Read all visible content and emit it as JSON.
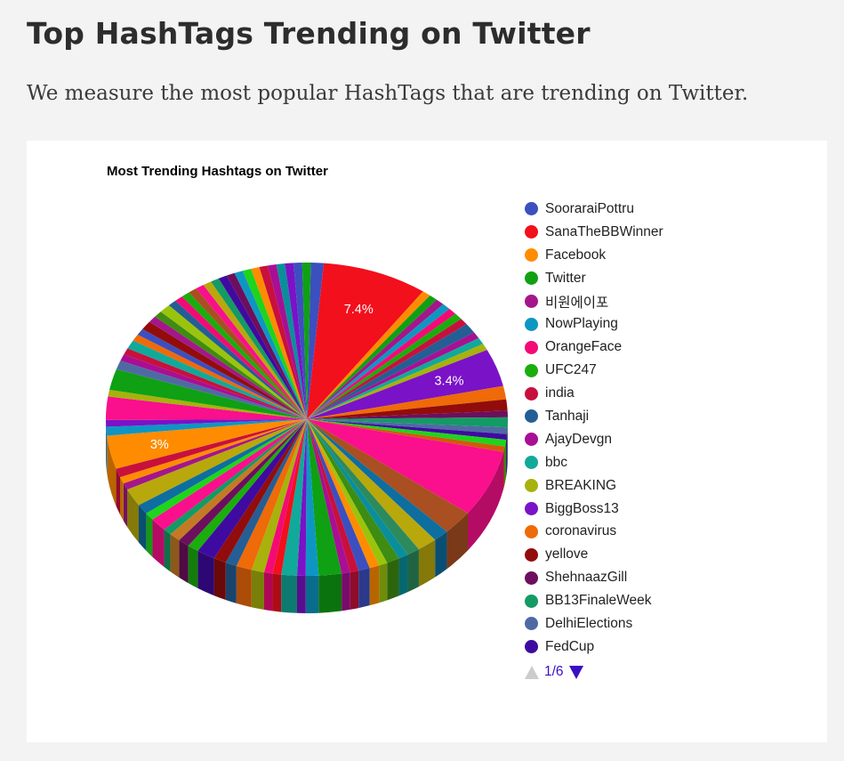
{
  "page": {
    "title": "Top HashTags Trending on Twitter",
    "subtitle": "We measure the most popular HashTags that are trending on Twitter."
  },
  "chart_data": {
    "type": "pie",
    "title": "Most Trending Hashtags on Twitter",
    "legend_position": "right",
    "legend_page": "1/6",
    "legend": [
      {
        "label": "SooraraiPottru",
        "color": "#3c4fbf"
      },
      {
        "label": "SanaTheBBWinner",
        "color": "#f1101c"
      },
      {
        "label": "Facebook",
        "color": "#ff8c00"
      },
      {
        "label": "Twitter",
        "color": "#0fa014"
      },
      {
        "label": "비원에이포",
        "color": "#a4168a"
      },
      {
        "label": "NowPlaying",
        "color": "#0e96c2"
      },
      {
        "label": "OrangeFace",
        "color": "#f30a76"
      },
      {
        "label": "UFC247",
        "color": "#1aad0d"
      },
      {
        "label": "india",
        "color": "#c8103c"
      },
      {
        "label": "Tanhaji",
        "color": "#245e94"
      },
      {
        "label": "AjayDevgn",
        "color": "#a80f94"
      },
      {
        "label": "bbc",
        "color": "#11a99a"
      },
      {
        "label": "BREAKING",
        "color": "#a7b20c"
      },
      {
        "label": "BiggBoss13",
        "color": "#7a12c7"
      },
      {
        "label": "coronavirus",
        "color": "#ef6a08"
      },
      {
        "label": "yellove",
        "color": "#920c0c"
      },
      {
        "label": "ShehnaazGill",
        "color": "#6d0f5e"
      },
      {
        "label": "BB13FinaleWeek",
        "color": "#149a64"
      },
      {
        "label": "DelhiElections",
        "color": "#4f6aa3"
      },
      {
        "label": "FedCup",
        "color": "#3f0aa0"
      }
    ],
    "slices": [
      {
        "value": 0.9,
        "color": "#3c4fbf"
      },
      {
        "value": 7.4,
        "color": "#f1101c",
        "label": "7.4%"
      },
      {
        "value": 0.6,
        "color": "#ff8c00"
      },
      {
        "value": 0.6,
        "color": "#0fa014"
      },
      {
        "value": 0.6,
        "color": "#a4168a"
      },
      {
        "value": 0.6,
        "color": "#0e96c2"
      },
      {
        "value": 0.6,
        "color": "#f30a76"
      },
      {
        "value": 0.6,
        "color": "#1aad0d"
      },
      {
        "value": 0.6,
        "color": "#c8103c"
      },
      {
        "value": 0.9,
        "color": "#245e94"
      },
      {
        "value": 0.6,
        "color": "#a80f94"
      },
      {
        "value": 0.6,
        "color": "#11a99a"
      },
      {
        "value": 0.6,
        "color": "#a7b20c"
      },
      {
        "value": 3.4,
        "color": "#7a12c7",
        "label": "3.4%"
      },
      {
        "value": 1.2,
        "color": "#ef6a08"
      },
      {
        "value": 1.0,
        "color": "#920c0c"
      },
      {
        "value": 0.6,
        "color": "#6d0f5e"
      },
      {
        "value": 0.9,
        "color": "#149a64"
      },
      {
        "value": 0.6,
        "color": "#4f6aa3"
      },
      {
        "value": 0.5,
        "color": "#3f0aa0"
      },
      {
        "value": 0.6,
        "color": "#1fd41c"
      },
      {
        "value": 0.5,
        "color": "#d05b0a"
      },
      {
        "value": 6.0,
        "color": "#fa0f8c"
      },
      {
        "value": 2.2,
        "color": "#a94f22"
      },
      {
        "value": 1.1,
        "color": "#0e6ea0"
      },
      {
        "value": 1.4,
        "color": "#b8a80c"
      },
      {
        "value": 0.9,
        "color": "#2d8a5c"
      },
      {
        "value": 0.7,
        "color": "#0a8f9a"
      },
      {
        "value": 0.9,
        "color": "#3e8c12"
      },
      {
        "value": 0.6,
        "color": "#9ac40c"
      },
      {
        "value": 0.7,
        "color": "#ff8c00"
      },
      {
        "value": 0.8,
        "color": "#3c4fbf"
      },
      {
        "value": 0.6,
        "color": "#c8103c"
      },
      {
        "value": 0.6,
        "color": "#a80f94"
      },
      {
        "value": 1.6,
        "color": "#0fa014"
      },
      {
        "value": 0.9,
        "color": "#0e96c2"
      },
      {
        "value": 0.6,
        "color": "#7a12c7"
      },
      {
        "value": 1.1,
        "color": "#11a99a"
      },
      {
        "value": 0.6,
        "color": "#f1101c"
      },
      {
        "value": 0.6,
        "color": "#f30a76"
      },
      {
        "value": 0.9,
        "color": "#a7b20c"
      },
      {
        "value": 1.1,
        "color": "#ef6a08"
      },
      {
        "value": 0.8,
        "color": "#245e94"
      },
      {
        "value": 0.9,
        "color": "#920c0c"
      },
      {
        "value": 1.3,
        "color": "#3f0aa0"
      },
      {
        "value": 0.8,
        "color": "#1aad0d"
      },
      {
        "value": 0.8,
        "color": "#6d0f5e"
      },
      {
        "value": 0.8,
        "color": "#c47a24"
      },
      {
        "value": 0.6,
        "color": "#149a64"
      },
      {
        "value": 1.2,
        "color": "#fa0f8c"
      },
      {
        "value": 0.7,
        "color": "#1fd41c"
      },
      {
        "value": 0.9,
        "color": "#0e6ea0"
      },
      {
        "value": 1.6,
        "color": "#b8a80c"
      },
      {
        "value": 0.6,
        "color": "#a4168a"
      },
      {
        "value": 0.6,
        "color": "#ff8c00"
      },
      {
        "value": 0.8,
        "color": "#c8103c"
      },
      {
        "value": 3.0,
        "color": "#ff8c00",
        "label": "3%"
      },
      {
        "value": 0.8,
        "color": "#0e96c2"
      },
      {
        "value": 0.6,
        "color": "#7a12c7"
      },
      {
        "value": 2.1,
        "color": "#fa0f8c"
      },
      {
        "value": 0.6,
        "color": "#a7b20c"
      },
      {
        "value": 1.9,
        "color": "#0fa014"
      },
      {
        "value": 0.8,
        "color": "#4f6aa3"
      },
      {
        "value": 0.6,
        "color": "#a80f94"
      },
      {
        "value": 0.6,
        "color": "#c8103c"
      },
      {
        "value": 0.8,
        "color": "#11a99a"
      },
      {
        "value": 0.6,
        "color": "#ef6a08"
      },
      {
        "value": 0.6,
        "color": "#3c4fbf"
      },
      {
        "value": 0.8,
        "color": "#920c0c"
      },
      {
        "value": 0.6,
        "color": "#a4168a"
      },
      {
        "value": 0.6,
        "color": "#3e8c12"
      },
      {
        "value": 0.8,
        "color": "#9ac40c"
      },
      {
        "value": 0.6,
        "color": "#245e94"
      },
      {
        "value": 0.6,
        "color": "#f30a76"
      },
      {
        "value": 0.6,
        "color": "#1aad0d"
      },
      {
        "value": 0.6,
        "color": "#a94f22"
      },
      {
        "value": 0.6,
        "color": "#fa0f8c"
      },
      {
        "value": 0.6,
        "color": "#b8a80c"
      },
      {
        "value": 0.6,
        "color": "#149a64"
      },
      {
        "value": 0.6,
        "color": "#3f0aa0"
      },
      {
        "value": 0.6,
        "color": "#6d0f5e"
      },
      {
        "value": 0.6,
        "color": "#0e96c2"
      },
      {
        "value": 0.6,
        "color": "#1fd41c"
      },
      {
        "value": 0.6,
        "color": "#ff8c00"
      },
      {
        "value": 0.6,
        "color": "#c8103c"
      },
      {
        "value": 0.6,
        "color": "#a80f94"
      },
      {
        "value": 0.6,
        "color": "#0a8f9a"
      },
      {
        "value": 0.6,
        "color": "#7a12c7"
      },
      {
        "value": 0.6,
        "color": "#3c4fbf"
      },
      {
        "value": 0.6,
        "color": "#0fa014"
      }
    ]
  }
}
